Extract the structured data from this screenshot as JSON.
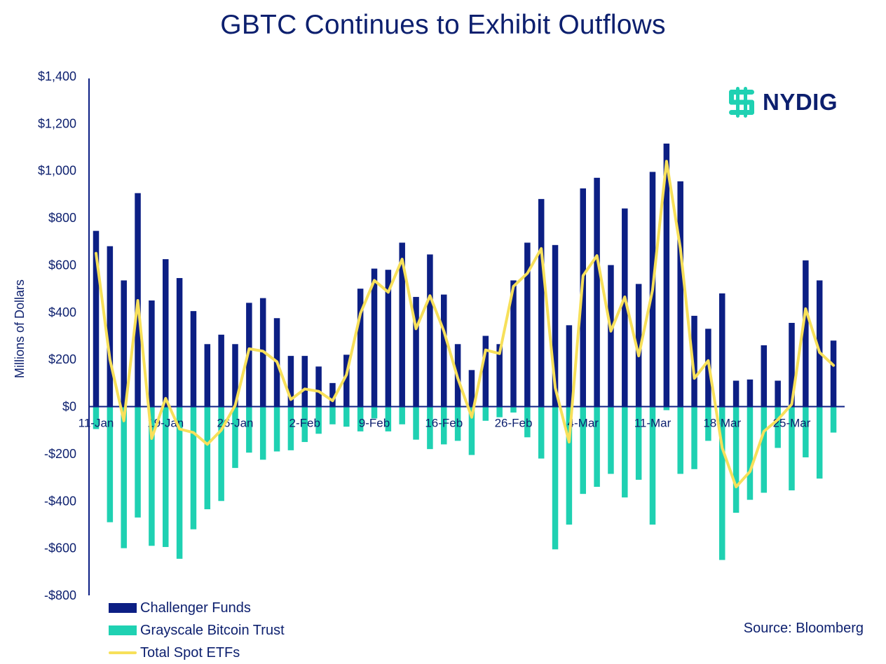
{
  "title": "GBTC Continues to Exhibit Outflows",
  "source": "Source: Bloomberg",
  "logo": {
    "text": "NYDIG",
    "icon": "nydig-logo-icon",
    "color": "#1fd1b2"
  },
  "colors": {
    "challenger": "#0c1f84",
    "grayscale": "#1fd1b2",
    "total": "#f7e05a",
    "text": "#0c1f6e"
  },
  "chart_data": {
    "type": "bar",
    "title": "GBTC Continues to Exhibit Outflows",
    "ylabel": "Millions of Dollars",
    "xlabel": "",
    "ylim": [
      -800,
      1400
    ],
    "yticks": [
      1400,
      1200,
      1000,
      800,
      600,
      400,
      200,
      0,
      -200,
      -400,
      -600,
      -800
    ],
    "ytick_labels": [
      "$1,400",
      "$1,200",
      "$1,000",
      "$800",
      "$600",
      "$400",
      "$200",
      "$0",
      "-$200",
      "-$400",
      "-$600",
      "-$800"
    ],
    "xtick_labels": [
      {
        "label": "11-Jan",
        "index": 0
      },
      {
        "label": "19-Jan",
        "index": 5
      },
      {
        "label": "26-Jan",
        "index": 10
      },
      {
        "label": "2-Feb",
        "index": 15
      },
      {
        "label": "9-Feb",
        "index": 20
      },
      {
        "label": "16-Feb",
        "index": 25
      },
      {
        "label": "26-Feb",
        "index": 30
      },
      {
        "label": "4-Mar",
        "index": 35
      },
      {
        "label": "11-Mar",
        "index": 40
      },
      {
        "label": "18-Mar",
        "index": 45
      },
      {
        "label": "25-Mar",
        "index": 50
      }
    ],
    "legend_position": "bottom-left",
    "grid": false,
    "series": [
      {
        "name": "Challenger Funds",
        "type": "bar",
        "values": [
          745,
          680,
          535,
          905,
          450,
          625,
          545,
          405,
          265,
          305,
          265,
          440,
          460,
          375,
          215,
          215,
          170,
          100,
          220,
          500,
          585,
          580,
          695,
          465,
          645,
          475,
          265,
          155,
          300,
          265,
          535,
          695,
          880,
          685,
          345,
          925,
          970,
          600,
          840,
          520,
          995,
          1115,
          955,
          385,
          330,
          480,
          110,
          115,
          260,
          110,
          355,
          620,
          535,
          280
        ]
      },
      {
        "name": "Grayscale Bitcoin Trust",
        "type": "bar",
        "values": [
          -95,
          -490,
          -600,
          -470,
          -590,
          -595,
          -645,
          -520,
          -435,
          -400,
          -260,
          -195,
          -225,
          -190,
          -185,
          -150,
          -115,
          -75,
          -85,
          -105,
          -50,
          -105,
          -75,
          -140,
          -180,
          -160,
          -145,
          -205,
          -60,
          -45,
          -25,
          -130,
          -220,
          -605,
          -500,
          -370,
          -340,
          -285,
          -385,
          -310,
          -500,
          -15,
          -285,
          -265,
          -145,
          -650,
          -450,
          -395,
          -365,
          -175,
          -355,
          -215,
          -305,
          -110
        ]
      },
      {
        "name": "Total Spot ETFs",
        "type": "line",
        "values": [
          650,
          200,
          -60,
          450,
          -135,
          35,
          -95,
          -110,
          -160,
          -100,
          5,
          245,
          235,
          190,
          30,
          75,
          65,
          25,
          135,
          395,
          535,
          485,
          625,
          330,
          470,
          320,
          120,
          -45,
          240,
          225,
          510,
          565,
          670,
          80,
          -150,
          555,
          640,
          320,
          465,
          215,
          495,
          1040,
          670,
          120,
          195,
          -175,
          -340,
          -275,
          -105,
          -55,
          10,
          415,
          230,
          175
        ]
      }
    ]
  }
}
